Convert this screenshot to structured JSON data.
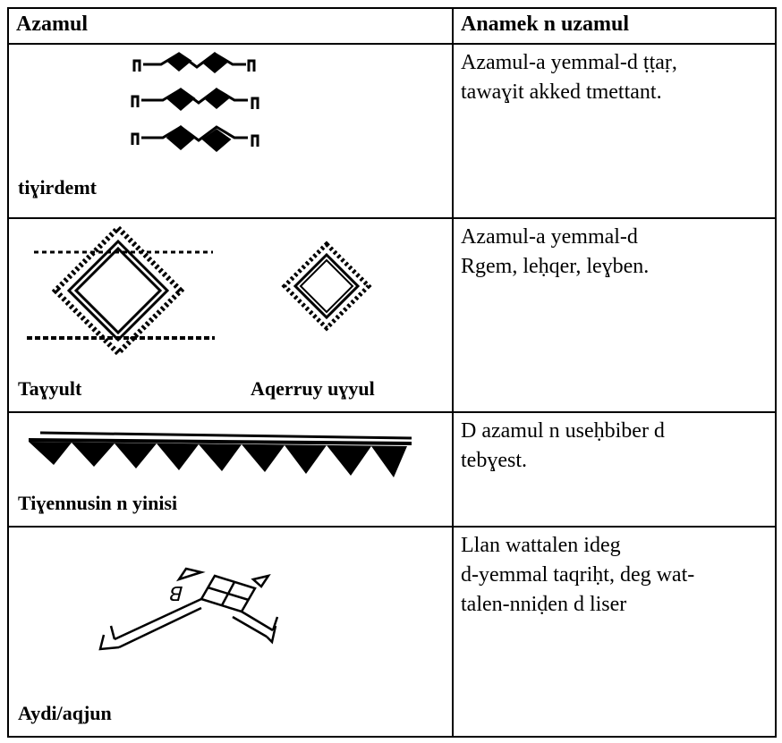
{
  "table": {
    "header": [
      "Azamul",
      "Anamek n uzamul"
    ],
    "rows": [
      {
        "labels": [
          "tiɣirdemt"
        ],
        "description": [
          "Azamul-a yemmal-d ṭṭaṛ,",
          "tawaɣit akked tmettant."
        ]
      },
      {
        "labels": [
          "Taɣyult",
          "Aqerruy uɣyul"
        ],
        "description": [
          "Azamul-a yemmal-d",
          "Rgem, leḥqer, leɣben."
        ]
      },
      {
        "labels": [
          "Tiɣennusin n yinisi"
        ],
        "description": [
          "D azamul n useḥbiber d",
          "tebɣest."
        ]
      },
      {
        "labels": [
          "Aydi/aqjun"
        ],
        "description": [
          "Llan wattalen ideg",
          "d-yemmal taqriḥt, deg wat-",
          "talen-nniḍen d liser"
        ]
      }
    ]
  }
}
